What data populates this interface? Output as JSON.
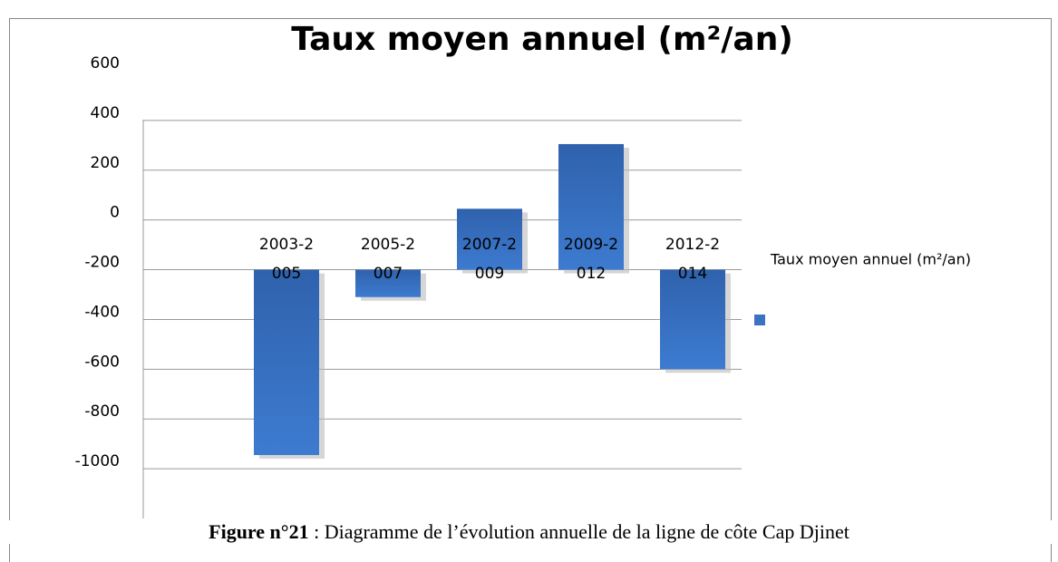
{
  "chart_data": {
    "type": "bar",
    "title": "Taux moyen annuel (m²/an)",
    "categories": [
      "2003-2005",
      "2005-2007",
      "2007-2009",
      "2009-2012",
      "2012-2014"
    ],
    "series": [
      {
        "name": "Taux moyen annuel (m²/an)",
        "color": "#3a73c4",
        "values": [
          -945,
          -310,
          45,
          305,
          -600
        ]
      }
    ],
    "bar_base": -200,
    "ylim": [
      -1200,
      600
    ],
    "yticks": [
      600,
      400,
      200,
      0,
      -200,
      -400,
      -600,
      -800,
      -1000
    ],
    "grid": true,
    "legend": "right"
  },
  "caption": {
    "label": "Figure n°21",
    "text": " : Diagramme de l’évolution annuelle de la ligne de côte Cap Djinet"
  }
}
